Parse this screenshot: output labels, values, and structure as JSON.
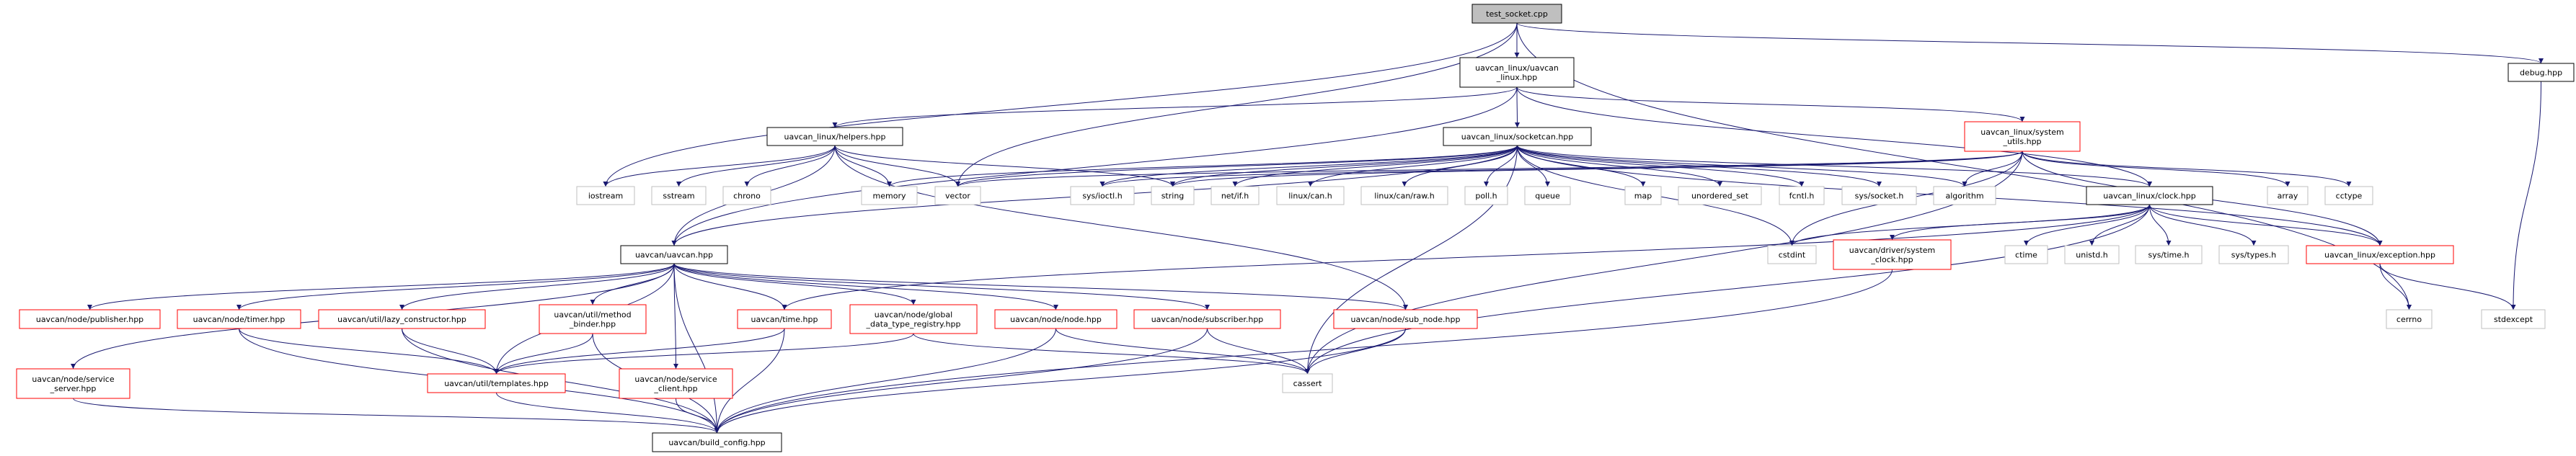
{
  "colors": {
    "edge": "#191970",
    "root_fill": "#bfbfbf",
    "root_border": "#000000",
    "normal_border": "#000000",
    "incomplete_border": "#ff0000",
    "system_border": "#bfbfbf"
  },
  "nodes": [
    {
      "id": "test_socket",
      "label": [
        "test_socket.cpp"
      ],
      "kind": "root"
    },
    {
      "id": "uavcan_linux",
      "label": [
        "uavcan_linux/uavcan",
        "_linux.hpp"
      ],
      "kind": "normal"
    },
    {
      "id": "debug",
      "label": [
        "debug.hpp"
      ],
      "kind": "normal"
    },
    {
      "id": "helpers",
      "label": [
        "uavcan_linux/helpers.hpp"
      ],
      "kind": "normal"
    },
    {
      "id": "socketcan",
      "label": [
        "uavcan_linux/socketcan.hpp"
      ],
      "kind": "normal"
    },
    {
      "id": "system_utils",
      "label": [
        "uavcan_linux/system",
        "_utils.hpp"
      ],
      "kind": "incomplete"
    },
    {
      "id": "iostream",
      "label": [
        "iostream"
      ],
      "kind": "system"
    },
    {
      "id": "sstream",
      "label": [
        "sstream"
      ],
      "kind": "system"
    },
    {
      "id": "chrono",
      "label": [
        "chrono"
      ],
      "kind": "system"
    },
    {
      "id": "memory",
      "label": [
        "memory"
      ],
      "kind": "system"
    },
    {
      "id": "vector",
      "label": [
        "vector"
      ],
      "kind": "system"
    },
    {
      "id": "sys_ioctl",
      "label": [
        "sys/ioctl.h"
      ],
      "kind": "system"
    },
    {
      "id": "string",
      "label": [
        "string"
      ],
      "kind": "system"
    },
    {
      "id": "net_if",
      "label": [
        "net/if.h"
      ],
      "kind": "system"
    },
    {
      "id": "linux_can",
      "label": [
        "linux/can.h"
      ],
      "kind": "system"
    },
    {
      "id": "linux_can_raw",
      "label": [
        "linux/can/raw.h"
      ],
      "kind": "system"
    },
    {
      "id": "poll",
      "label": [
        "poll.h"
      ],
      "kind": "system"
    },
    {
      "id": "queue",
      "label": [
        "queue"
      ],
      "kind": "system"
    },
    {
      "id": "map",
      "label": [
        "map"
      ],
      "kind": "system"
    },
    {
      "id": "unordered_set",
      "label": [
        "unordered_set"
      ],
      "kind": "system"
    },
    {
      "id": "fcntl",
      "label": [
        "fcntl.h"
      ],
      "kind": "system"
    },
    {
      "id": "sys_socket",
      "label": [
        "sys/socket.h"
      ],
      "kind": "system"
    },
    {
      "id": "algorithm",
      "label": [
        "algorithm"
      ],
      "kind": "system"
    },
    {
      "id": "clock",
      "label": [
        "uavcan_linux/clock.hpp"
      ],
      "kind": "normal"
    },
    {
      "id": "array",
      "label": [
        "array"
      ],
      "kind": "system"
    },
    {
      "id": "cctype",
      "label": [
        "cctype"
      ],
      "kind": "system"
    },
    {
      "id": "uavcan",
      "label": [
        "uavcan/uavcan.hpp"
      ],
      "kind": "normal"
    },
    {
      "id": "cstdint",
      "label": [
        "cstdint"
      ],
      "kind": "system"
    },
    {
      "id": "system_clock",
      "label": [
        "uavcan/driver/system",
        "_clock.hpp"
      ],
      "kind": "incomplete"
    },
    {
      "id": "ctime",
      "label": [
        "ctime"
      ],
      "kind": "system"
    },
    {
      "id": "unistd",
      "label": [
        "unistd.h"
      ],
      "kind": "system"
    },
    {
      "id": "sys_time",
      "label": [
        "sys/time.h"
      ],
      "kind": "system"
    },
    {
      "id": "sys_types",
      "label": [
        "sys/types.h"
      ],
      "kind": "system"
    },
    {
      "id": "exception",
      "label": [
        "uavcan_linux/exception.hpp"
      ],
      "kind": "incomplete"
    },
    {
      "id": "publisher",
      "label": [
        "uavcan/node/publisher.hpp"
      ],
      "kind": "incomplete"
    },
    {
      "id": "timer",
      "label": [
        "uavcan/node/timer.hpp"
      ],
      "kind": "incomplete"
    },
    {
      "id": "lazy_constructor",
      "label": [
        "uavcan/util/lazy_constructor.hpp"
      ],
      "kind": "incomplete"
    },
    {
      "id": "method_binder",
      "label": [
        "uavcan/util/method",
        "_binder.hpp"
      ],
      "kind": "incomplete"
    },
    {
      "id": "time",
      "label": [
        "uavcan/time.hpp"
      ],
      "kind": "incomplete"
    },
    {
      "id": "global_registry",
      "label": [
        "uavcan/node/global",
        "_data_type_registry.hpp"
      ],
      "kind": "incomplete"
    },
    {
      "id": "node",
      "label": [
        "uavcan/node/node.hpp"
      ],
      "kind": "incomplete"
    },
    {
      "id": "subscriber",
      "label": [
        "uavcan/node/subscriber.hpp"
      ],
      "kind": "incomplete"
    },
    {
      "id": "sub_node",
      "label": [
        "uavcan/node/sub_node.hpp"
      ],
      "kind": "incomplete"
    },
    {
      "id": "cerrno",
      "label": [
        "cerrno"
      ],
      "kind": "system"
    },
    {
      "id": "stdexcept",
      "label": [
        "stdexcept"
      ],
      "kind": "system"
    },
    {
      "id": "service_server",
      "label": [
        "uavcan/node/service",
        "_server.hpp"
      ],
      "kind": "incomplete"
    },
    {
      "id": "templates",
      "label": [
        "uavcan/util/templates.hpp"
      ],
      "kind": "incomplete"
    },
    {
      "id": "service_client",
      "label": [
        "uavcan/node/service",
        "_client.hpp"
      ],
      "kind": "incomplete"
    },
    {
      "id": "cassert",
      "label": [
        "cassert"
      ],
      "kind": "system"
    },
    {
      "id": "build_config",
      "label": [
        "uavcan/build_config.hpp"
      ],
      "kind": "normal"
    }
  ],
  "edges": [
    [
      "test_socket",
      "uavcan_linux"
    ],
    [
      "test_socket",
      "debug"
    ],
    [
      "test_socket",
      "iostream"
    ],
    [
      "test_socket",
      "vector"
    ],
    [
      "test_socket",
      "cerrno"
    ],
    [
      "uavcan_linux",
      "helpers"
    ],
    [
      "uavcan_linux",
      "socketcan"
    ],
    [
      "uavcan_linux",
      "system_utils"
    ],
    [
      "uavcan_linux",
      "clock"
    ],
    [
      "uavcan_linux",
      "uavcan"
    ],
    [
      "debug",
      "stdexcept"
    ],
    [
      "helpers",
      "iostream"
    ],
    [
      "helpers",
      "sstream"
    ],
    [
      "helpers",
      "chrono"
    ],
    [
      "helpers",
      "memory"
    ],
    [
      "helpers",
      "vector"
    ],
    [
      "helpers",
      "string"
    ],
    [
      "helpers",
      "uavcan"
    ],
    [
      "helpers",
      "sub_node"
    ],
    [
      "socketcan",
      "vector"
    ],
    [
      "socketcan",
      "memory"
    ],
    [
      "socketcan",
      "sys_ioctl"
    ],
    [
      "socketcan",
      "string"
    ],
    [
      "socketcan",
      "net_if"
    ],
    [
      "socketcan",
      "linux_can"
    ],
    [
      "socketcan",
      "linux_can_raw"
    ],
    [
      "socketcan",
      "poll"
    ],
    [
      "socketcan",
      "queue"
    ],
    [
      "socketcan",
      "map"
    ],
    [
      "socketcan",
      "unordered_set"
    ],
    [
      "socketcan",
      "fcntl"
    ],
    [
      "socketcan",
      "sys_socket"
    ],
    [
      "socketcan",
      "algorithm"
    ],
    [
      "socketcan",
      "clock"
    ],
    [
      "socketcan",
      "cstdint"
    ],
    [
      "socketcan",
      "cassert"
    ],
    [
      "socketcan",
      "uavcan"
    ],
    [
      "socketcan",
      "exception"
    ],
    [
      "system_utils",
      "vector"
    ],
    [
      "system_utils",
      "string"
    ],
    [
      "system_utils",
      "sys_ioctl"
    ],
    [
      "system_utils",
      "algorithm"
    ],
    [
      "system_utils",
      "array"
    ],
    [
      "system_utils",
      "cctype"
    ],
    [
      "system_utils",
      "exception"
    ],
    [
      "system_utils",
      "cstdint"
    ],
    [
      "system_utils",
      "cassert"
    ],
    [
      "clock",
      "cstdint"
    ],
    [
      "clock",
      "system_clock"
    ],
    [
      "clock",
      "ctime"
    ],
    [
      "clock",
      "unistd"
    ],
    [
      "clock",
      "sys_time"
    ],
    [
      "clock",
      "sys_types"
    ],
    [
      "clock",
      "exception"
    ],
    [
      "clock",
      "cassert"
    ],
    [
      "clock",
      "time"
    ],
    [
      "exception",
      "cerrno"
    ],
    [
      "exception",
      "stdexcept"
    ],
    [
      "uavcan",
      "publisher"
    ],
    [
      "uavcan",
      "timer"
    ],
    [
      "uavcan",
      "lazy_constructor"
    ],
    [
      "uavcan",
      "method_binder"
    ],
    [
      "uavcan",
      "templates"
    ],
    [
      "uavcan",
      "service_client"
    ],
    [
      "uavcan",
      "build_config"
    ],
    [
      "uavcan",
      "time"
    ],
    [
      "uavcan",
      "global_registry"
    ],
    [
      "uavcan",
      "node"
    ],
    [
      "uavcan",
      "subscriber"
    ],
    [
      "uavcan",
      "sub_node"
    ],
    [
      "uavcan",
      "service_server"
    ],
    [
      "timer",
      "templates"
    ],
    [
      "timer",
      "build_config"
    ],
    [
      "lazy_constructor",
      "templates"
    ],
    [
      "lazy_constructor",
      "build_config"
    ],
    [
      "method_binder",
      "templates"
    ],
    [
      "method_binder",
      "build_config"
    ],
    [
      "time",
      "templates"
    ],
    [
      "time",
      "build_config"
    ],
    [
      "global_registry",
      "templates"
    ],
    [
      "global_registry",
      "cassert"
    ],
    [
      "node",
      "build_config"
    ],
    [
      "node",
      "cassert"
    ],
    [
      "subscriber",
      "cassert"
    ],
    [
      "subscriber",
      "build_config"
    ],
    [
      "sub_node",
      "cassert"
    ],
    [
      "sub_node",
      "build_config"
    ],
    [
      "system_clock",
      "build_config"
    ],
    [
      "service_server",
      "build_config"
    ],
    [
      "service_client",
      "build_config"
    ],
    [
      "templates",
      "build_config"
    ]
  ]
}
